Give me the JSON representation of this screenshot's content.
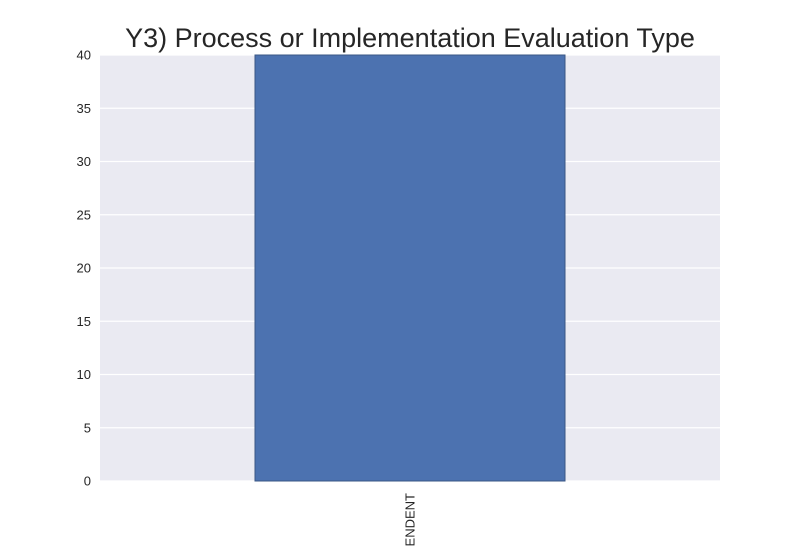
{
  "chart_data": {
    "type": "bar",
    "title": "Y3) Process or Implementation Evaluation Type",
    "xlabel": "",
    "ylabel": "",
    "categories": [
      "ENDENT"
    ],
    "values": [
      40
    ],
    "ylim": [
      0,
      40
    ],
    "yticks": [
      0,
      5,
      10,
      15,
      20,
      25,
      30,
      35,
      40
    ],
    "grid": true,
    "legend": "none",
    "colors": {
      "bar": "#4c72b0",
      "bar_edge": "#3a5784",
      "plot_background": "#eaeaf2",
      "grid": "#ffffff",
      "text": "#262626"
    }
  }
}
